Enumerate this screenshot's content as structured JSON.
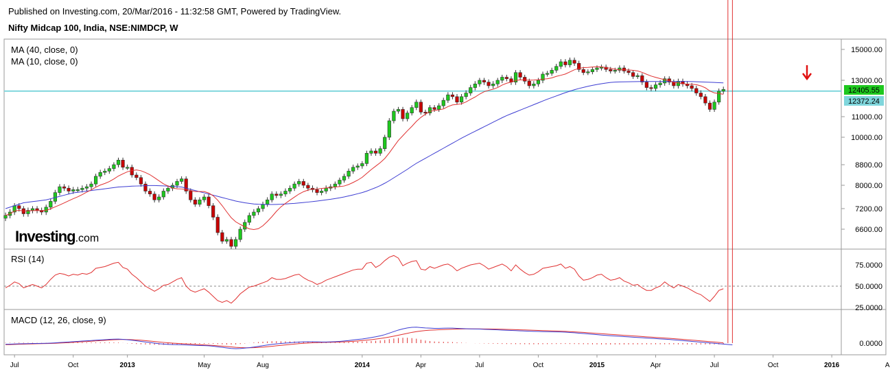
{
  "header": {
    "published": "Published on Investing.com, 20/Mar/2016 - 11:32:58 GMT, Powered by TradingView.",
    "symbol": "Nifty Midcap 100, India, NSE:NIMDCP, W"
  },
  "logo": {
    "main": "Investing",
    "suffix": ".com"
  },
  "colors": {
    "up": "#1ec81e",
    "down": "#c80000",
    "ma40": "#3c3cd2",
    "ma10": "#e03030",
    "rsi": "#e03030",
    "macd": "#3c3cd2",
    "signal": "#e03030",
    "hline": "#7fd6dc",
    "label_green": "#1ec81e",
    "label_cyan": "#7fd6dc"
  },
  "chart_data": {
    "type": "candlestick",
    "x_labels": [
      {
        "text": "Jul",
        "week": 2,
        "bold": false
      },
      {
        "text": "Oct",
        "week": 15,
        "bold": false
      },
      {
        "text": "2013",
        "week": 27,
        "bold": true
      },
      {
        "text": "May",
        "week": 44,
        "bold": false
      },
      {
        "text": "Aug",
        "week": 57,
        "bold": false
      },
      {
        "text": "2014",
        "week": 79,
        "bold": true
      },
      {
        "text": "Apr",
        "week": 92,
        "bold": false
      },
      {
        "text": "Jul",
        "week": 105,
        "bold": false
      },
      {
        "text": "Oct",
        "week": 118,
        "bold": false
      },
      {
        "text": "2015",
        "week": 131,
        "bold": true
      },
      {
        "text": "Apr",
        "week": 144,
        "bold": false
      },
      {
        "text": "Jul",
        "week": 157,
        "bold": false
      },
      {
        "text": "Oct",
        "week": 170,
        "bold": false
      },
      {
        "text": "2016",
        "week": 183,
        "bold": true
      },
      {
        "text": "Apr",
        "week": 196,
        "bold": false
      }
    ],
    "price_pane": {
      "indicators": [
        "MA (40, close, 0)",
        "MA (10, close, 0)"
      ],
      "y_ticks": [
        "15000.00",
        "13000.00",
        "11000.00",
        "10000.00",
        "8800.00",
        "8000.00",
        "7200.00",
        "6600.00"
      ],
      "hline_value": 12405.55,
      "last_price_label": "12405.55",
      "ma_label": "12372.24",
      "closes": [
        7000,
        7100,
        7300,
        7200,
        7050,
        7150,
        7200,
        7150,
        7100,
        7250,
        7450,
        7750,
        7950,
        7900,
        7800,
        7850,
        7850,
        7900,
        7950,
        8050,
        8350,
        8500,
        8550,
        8650,
        8800,
        9000,
        8700,
        8700,
        8400,
        8300,
        8050,
        7800,
        7700,
        7500,
        7600,
        7800,
        7900,
        8000,
        8150,
        8250,
        7800,
        7500,
        7350,
        7500,
        7600,
        7300,
        6950,
        6500,
        6250,
        6300,
        6100,
        6300,
        6600,
        6800,
        7000,
        7100,
        7200,
        7350,
        7500,
        7700,
        7650,
        7700,
        7800,
        7900,
        8050,
        8150,
        8000,
        7900,
        7850,
        7750,
        7800,
        7900,
        7950,
        8050,
        8200,
        8350,
        8550,
        8700,
        8750,
        8850,
        9300,
        9400,
        9300,
        9500,
        10000,
        10800,
        11300,
        11400,
        10900,
        11200,
        11500,
        11800,
        11250,
        11200,
        11500,
        11400,
        11600,
        11900,
        12200,
        12100,
        11800,
        12100,
        12300,
        12600,
        12800,
        13000,
        12900,
        12700,
        12800,
        13000,
        13200,
        13100,
        12900,
        13500,
        13200,
        12950,
        12700,
        12800,
        13000,
        13400,
        13450,
        13650,
        13900,
        14200,
        14000,
        14300,
        14100,
        13700,
        13500,
        13550,
        13700,
        13800,
        13850,
        13700,
        13600,
        13650,
        13800,
        13600,
        13500,
        13250,
        13300,
        12900,
        12600,
        12550,
        12750,
        12850,
        13100,
        12900,
        12700,
        12950,
        12800,
        12700,
        12550,
        12300,
        12100,
        11750,
        11400,
        11800,
        12400,
        12500
      ],
      "ma40": [
        7200,
        7250,
        7300,
        7350,
        7400,
        7420,
        7440,
        7460,
        7480,
        7500,
        7540,
        7580,
        7620,
        7660,
        7700,
        7740,
        7760,
        7780,
        7800,
        7820,
        7840,
        7860,
        7880,
        7900,
        7920,
        7940,
        7950,
        7960,
        7970,
        7975,
        7980,
        7985,
        7990,
        7990,
        7985,
        7980,
        7970,
        7960,
        7950,
        7940,
        7900,
        7860,
        7820,
        7780,
        7740,
        7700,
        7660,
        7620,
        7580,
        7540,
        7500,
        7460,
        7430,
        7400,
        7380,
        7360,
        7350,
        7345,
        7340,
        7340,
        7345,
        7350,
        7360,
        7370,
        7380,
        7395,
        7410,
        7425,
        7440,
        7460,
        7480,
        7500,
        7520,
        7545,
        7570,
        7600,
        7635,
        7670,
        7710,
        7750,
        7800,
        7860,
        7920,
        7990,
        8080,
        8180,
        8290,
        8400,
        8510,
        8620,
        8740,
        8860,
        8970,
        9080,
        9190,
        9300,
        9410,
        9520,
        9630,
        9740,
        9850,
        9960,
        10070,
        10180,
        10290,
        10400,
        10510,
        10620,
        10730,
        10840,
        10950,
        11060,
        11160,
        11260,
        11360,
        11460,
        11560,
        11660,
        11760,
        11860,
        11960,
        12050,
        12140,
        12230,
        12320,
        12400,
        12480,
        12550,
        12610,
        12670,
        12720,
        12770,
        12810,
        12850,
        12880,
        12900,
        12910,
        12915,
        12920,
        12925,
        12930,
        12935,
        12935,
        12935,
        12935,
        12935,
        12935,
        12935,
        12935,
        12935,
        12935,
        12935,
        12930,
        12920,
        12910,
        12900,
        12890,
        12880,
        12870,
        12860
      ]
    },
    "rsi_pane": {
      "label": "RSI (14)",
      "y_ticks": [
        "75.0000",
        "50.0000",
        "25.0000"
      ],
      "values": [
        48,
        51,
        55,
        53,
        48,
        50,
        52,
        50,
        48,
        52,
        58,
        63,
        65,
        64,
        62,
        64,
        63,
        65,
        64,
        66,
        71,
        72,
        73,
        75,
        77,
        78,
        72,
        70,
        64,
        60,
        55,
        50,
        47,
        44,
        47,
        51,
        52,
        55,
        58,
        60,
        50,
        45,
        43,
        45,
        47,
        43,
        38,
        33,
        31,
        33,
        30,
        35,
        41,
        45,
        49,
        50,
        52,
        54,
        56,
        60,
        58,
        58,
        59,
        61,
        63,
        64,
        60,
        57,
        55,
        52,
        54,
        57,
        59,
        61,
        63,
        65,
        67,
        69,
        70,
        70,
        77,
        78,
        72,
        75,
        80,
        84,
        86,
        83,
        74,
        77,
        79,
        80,
        70,
        69,
        73,
        71,
        73,
        75,
        76,
        73,
        68,
        71,
        73,
        75,
        76,
        77,
        74,
        70,
        72,
        74,
        76,
        73,
        68,
        75,
        70,
        66,
        63,
        64,
        67,
        71,
        72,
        73,
        74,
        76,
        71,
        73,
        70,
        62,
        57,
        58,
        60,
        63,
        64,
        60,
        57,
        58,
        60,
        56,
        54,
        51,
        52,
        48,
        45,
        45,
        48,
        50,
        55,
        51,
        48,
        52,
        50,
        48,
        45,
        42,
        40,
        36,
        32,
        38,
        45,
        47
      ]
    },
    "macd_pane": {
      "label": "MACD (12, 26, close, 9)",
      "y_ticks": [
        "0.0000"
      ],
      "macd": [
        -60,
        -55,
        -45,
        -35,
        -30,
        -25,
        -20,
        -18,
        -15,
        -10,
        0,
        15,
        30,
        45,
        60,
        75,
        90,
        105,
        120,
        135,
        150,
        165,
        180,
        195,
        205,
        210,
        195,
        175,
        150,
        120,
        90,
        60,
        30,
        0,
        -30,
        -50,
        -65,
        -75,
        -80,
        -85,
        -95,
        -105,
        -115,
        -125,
        -130,
        -140,
        -160,
        -190,
        -220,
        -250,
        -275,
        -290,
        -280,
        -260,
        -235,
        -205,
        -170,
        -135,
        -100,
        -65,
        -40,
        -20,
        0,
        20,
        40,
        55,
        65,
        70,
        70,
        65,
        60,
        60,
        65,
        75,
        90,
        110,
        135,
        165,
        190,
        215,
        250,
        290,
        330,
        380,
        440,
        520,
        600,
        680,
        740,
        790,
        820,
        830,
        810,
        790,
        780,
        770,
        770,
        775,
        780,
        780,
        770,
        760,
        750,
        740,
        735,
        730,
        720,
        710,
        700,
        690,
        680,
        670,
        660,
        650,
        640,
        630,
        620,
        610,
        605,
        600,
        595,
        590,
        585,
        580,
        570,
        555,
        540,
        520,
        500,
        480,
        460,
        440,
        420,
        400,
        385,
        370,
        355,
        340,
        325,
        310,
        295,
        280,
        265,
        250,
        235,
        220,
        205,
        190,
        170,
        150,
        130,
        110,
        90,
        70,
        50,
        30,
        10,
        -10,
        -30,
        -50,
        -70,
        -90
      ],
      "signal": [
        -80,
        -75,
        -68,
        -60,
        -52,
        -45,
        -38,
        -32,
        -27,
        -22,
        -16,
        -8,
        3,
        15,
        28,
        42,
        56,
        70,
        85,
        100,
        115,
        130,
        145,
        160,
        173,
        185,
        190,
        188,
        180,
        167,
        150,
        130,
        108,
        85,
        60,
        38,
        18,
        0,
        -15,
        -28,
        -42,
        -55,
        -68,
        -82,
        -95,
        -108,
        -122,
        -138,
        -156,
        -176,
        -198,
        -218,
        -232,
        -240,
        -240,
        -235,
        -224,
        -208,
        -188,
        -165,
        -140,
        -116,
        -92,
        -70,
        -48,
        -28,
        -10,
        5,
        18,
        28,
        35,
        40,
        45,
        50,
        58,
        68,
        80,
        95,
        112,
        132,
        155,
        180,
        208,
        240,
        275,
        315,
        360,
        410,
        460,
        510,
        560,
        600,
        630,
        655,
        672,
        685,
        695,
        705,
        715,
        725,
        732,
        737,
        740,
        741,
        741,
        740,
        738,
        735,
        731,
        727,
        722,
        716,
        709,
        702,
        694,
        686,
        678,
        670,
        662,
        654,
        646,
        638,
        630,
        622,
        612,
        600,
        587,
        572,
        556,
        540,
        523,
        506,
        489,
        472,
        456,
        440,
        424,
        408,
        392,
        376,
        360,
        344,
        328,
        312,
        296,
        280,
        264,
        248,
        231,
        213,
        195,
        176,
        157,
        138,
        118,
        98,
        77,
        56,
        35,
        14
      ]
    }
  }
}
